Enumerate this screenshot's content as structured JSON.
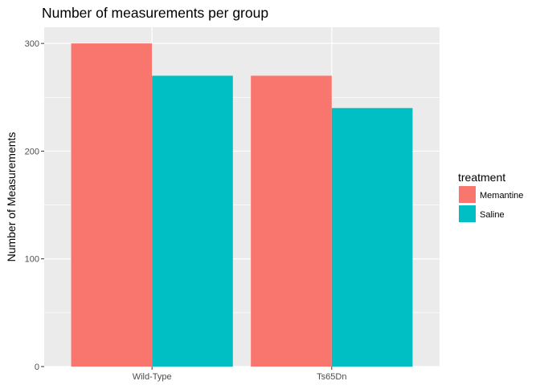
{
  "chart_data": {
    "type": "bar",
    "title": "Number of measurements per group",
    "xlabel": "",
    "ylabel": "Number of Measurements",
    "categories": [
      "Wild-Type",
      "Ts65Dn"
    ],
    "series": [
      {
        "name": "Memantine",
        "values": [
          300,
          270
        ],
        "color": "#F8766D"
      },
      {
        "name": "Saline",
        "values": [
          270,
          240
        ],
        "color": "#00BFC4"
      }
    ],
    "ylim": [
      0,
      315
    ],
    "yticks": [
      0,
      100,
      200,
      300
    ],
    "ytick_labels": [
      "0",
      "100",
      "200",
      "300"
    ],
    "legend": {
      "title": "treatment",
      "position": "right"
    },
    "grid": true,
    "panel_background": "#EBEBEB",
    "grid_color": "#FFFFFF"
  }
}
